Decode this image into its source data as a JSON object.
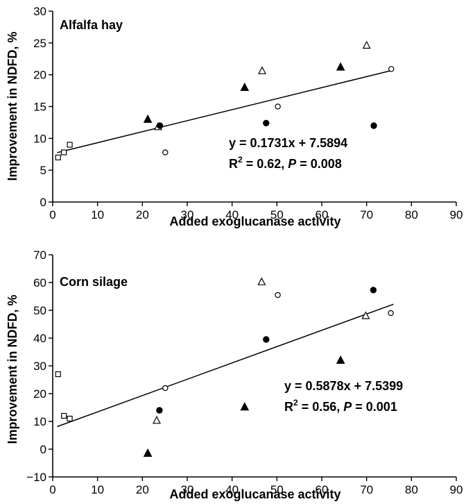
{
  "chart_data": [
    {
      "type": "scatter",
      "panel_label": "Alfalfa hay",
      "xlabel": "Added exoglucanase activity",
      "ylabel": "Improvement in NDFD, %",
      "xlim": [
        0,
        90
      ],
      "ylim": [
        0,
        30
      ],
      "xticks": [
        0,
        10,
        20,
        30,
        40,
        50,
        60,
        70,
        80,
        90
      ],
      "yticks": [
        0,
        5,
        10,
        15,
        20,
        25,
        30
      ],
      "fit": {
        "slope": 0.1731,
        "intercept": 7.5894,
        "x_range": [
          1,
          76
        ]
      },
      "equation": "y = 0.1731x + 7.5894",
      "r2_prefix": "R",
      "r2_sup": "2",
      "r2_value": " = 0.62, ",
      "p_label": "P",
      "p_value": " = 0.008",
      "series": [
        {
          "marker": "open-square",
          "points": [
            [
              1.2,
              7.0
            ],
            [
              2.5,
              7.8
            ],
            [
              3.8,
              9.0
            ]
          ]
        },
        {
          "marker": "filled-triangle",
          "points": [
            [
              21.2,
              13.0
            ],
            [
              42.8,
              18.0
            ],
            [
              64.2,
              21.2
            ]
          ]
        },
        {
          "marker": "open-triangle",
          "points": [
            [
              23.5,
              11.8
            ],
            [
              46.7,
              20.6
            ],
            [
              70.0,
              24.6
            ]
          ]
        },
        {
          "marker": "filled-circle",
          "points": [
            [
              23.9,
              12.0
            ],
            [
              47.6,
              12.4
            ],
            [
              71.6,
              12.0
            ]
          ]
        },
        {
          "marker": "open-circle",
          "points": [
            [
              25.1,
              7.8
            ],
            [
              50.2,
              15.0
            ],
            [
              75.5,
              20.9
            ]
          ]
        }
      ]
    },
    {
      "type": "scatter",
      "panel_label": "Corn silage",
      "xlabel": "Added exoglucanase activity",
      "ylabel": "Improvement in NDFD, %",
      "xlim": [
        0,
        90
      ],
      "ylim": [
        -10,
        70
      ],
      "xticks": [
        0,
        10,
        20,
        30,
        40,
        50,
        60,
        70,
        80,
        90
      ],
      "yticks": [
        -10,
        0,
        10,
        20,
        30,
        40,
        50,
        60,
        70
      ],
      "ytick_labels": [
        "−10",
        "0",
        "10",
        "20",
        "30",
        "40",
        "50",
        "60",
        "70"
      ],
      "fit": {
        "slope": 0.5878,
        "intercept": 7.5399,
        "x_range": [
          1,
          76
        ]
      },
      "equation": "y = 0.5878x + 7.5399",
      "r2_prefix": "R",
      "r2_sup": "2",
      "r2_value": " = 0.56, ",
      "p_label": "P",
      "p_value": " = 0.001",
      "series": [
        {
          "marker": "open-square",
          "points": [
            [
              1.2,
              27.0
            ],
            [
              2.5,
              12.0
            ],
            [
              3.8,
              11.0
            ]
          ]
        },
        {
          "marker": "filled-triangle",
          "points": [
            [
              21.2,
              -1.5
            ],
            [
              42.8,
              15.2
            ],
            [
              64.2,
              32.0
            ]
          ]
        },
        {
          "marker": "open-triangle",
          "points": [
            [
              23.2,
              10.3
            ],
            [
              46.6,
              60.2
            ],
            [
              69.8,
              48.0
            ]
          ]
        },
        {
          "marker": "filled-circle",
          "points": [
            [
              23.8,
              14.0
            ],
            [
              47.6,
              39.5
            ],
            [
              71.5,
              57.3
            ]
          ]
        },
        {
          "marker": "open-circle",
          "points": [
            [
              25.1,
              22.0
            ],
            [
              50.2,
              55.5
            ],
            [
              75.4,
              49.0
            ]
          ]
        }
      ]
    }
  ]
}
